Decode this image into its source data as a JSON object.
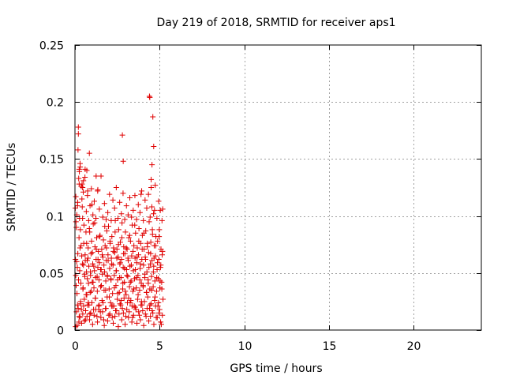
{
  "chart_data": {
    "type": "scatter",
    "title": "Day 219 of 2018, SRMTID for receiver aps1",
    "xlabel": "GPS time / hours",
    "ylabel": "SRMTID / TECUs",
    "xlim": [
      0,
      24
    ],
    "ylim": [
      0,
      0.25
    ],
    "xticks": [
      0,
      5,
      10,
      15,
      20
    ],
    "xtick_labels": [
      "0",
      "5",
      "10",
      "15",
      "20"
    ],
    "yticks": [
      0,
      0.05,
      0.1,
      0.15,
      0.2,
      0.25
    ],
    "ytick_labels": [
      "0",
      "0.05",
      "0.1",
      "0.15",
      "0.2",
      "0.25"
    ],
    "grid": true,
    "marker": "+",
    "series": [
      {
        "name": "SRMTID",
        "color": "#e00000",
        "x": [
          0.02,
          0.05,
          0.08,
          0.1,
          0.12,
          0.15,
          0.18,
          0.2,
          0.22,
          0.25,
          0.28,
          0.3,
          0.32,
          0.35,
          0.38,
          0.4,
          0.42,
          0.45,
          0.48,
          0.5,
          0.52,
          0.55,
          0.58,
          0.6,
          0.62,
          0.65,
          0.68,
          0.7,
          0.72,
          0.75,
          0.78,
          0.8,
          0.82,
          0.85,
          0.88,
          0.9,
          0.92,
          0.95,
          0.98,
          1.0,
          1.02,
          1.05,
          1.08,
          1.1,
          1.12,
          1.15,
          1.18,
          1.2,
          1.22,
          1.25,
          1.28,
          1.3,
          1.32,
          1.35,
          1.38,
          1.4,
          1.42,
          1.45,
          1.48,
          1.5,
          1.52,
          1.55,
          1.58,
          1.6,
          1.62,
          1.65,
          1.68,
          1.7,
          1.72,
          1.75,
          1.78,
          1.8,
          1.82,
          1.85,
          1.88,
          1.9,
          1.92,
          1.95,
          1.98,
          2.0,
          2.02,
          2.05,
          2.08,
          2.1,
          2.12,
          2.15,
          2.18,
          2.2,
          2.22,
          2.25,
          2.28,
          2.3,
          2.32,
          2.35,
          2.38,
          2.4,
          2.42,
          2.45,
          2.48,
          2.5,
          2.52,
          2.55,
          2.58,
          2.6,
          2.62,
          2.65,
          2.68,
          2.7,
          2.72,
          2.75,
          2.78,
          2.8,
          2.82,
          2.85,
          2.88,
          2.9,
          2.92,
          2.95,
          2.98,
          3.0,
          3.02,
          3.05,
          3.08,
          3.1,
          3.12,
          3.15,
          3.18,
          3.2,
          3.22,
          3.25,
          3.28,
          3.3,
          3.32,
          3.35,
          3.38,
          3.4,
          3.42,
          3.45,
          3.48,
          3.5,
          3.52,
          3.55,
          3.58,
          3.6,
          3.62,
          3.65,
          3.68,
          3.7,
          3.72,
          3.75,
          3.78,
          3.8,
          3.82,
          3.85,
          3.88,
          3.9,
          3.92,
          3.95,
          3.98,
          4.0,
          4.02,
          4.05,
          4.08,
          4.1,
          4.12,
          4.15,
          4.18,
          4.2,
          4.22,
          4.25,
          4.28,
          4.3,
          4.32,
          4.35,
          4.38,
          4.4,
          4.42,
          4.45,
          4.48,
          4.5,
          4.52,
          4.55,
          4.58,
          4.6,
          4.62,
          4.65,
          4.68,
          4.7,
          4.72,
          4.75,
          4.78,
          4.8,
          4.82,
          4.85,
          4.88,
          4.9,
          4.92,
          4.95,
          4.98,
          5.0,
          5.02,
          5.05,
          5.08,
          5.1,
          5.12,
          5.15,
          5.18,
          5.2,
          0.03,
          0.07,
          0.11,
          0.14,
          0.17,
          0.21,
          0.24,
          0.27,
          0.33,
          0.36,
          0.41,
          0.44,
          0.47,
          0.53,
          0.57,
          0.61,
          0.66,
          0.69,
          0.73,
          0.77,
          0.83,
          0.87,
          0.91,
          0.96,
          1.03,
          1.07,
          1.11,
          1.16,
          1.21,
          1.26,
          1.31,
          1.36,
          1.41,
          1.46,
          1.51,
          1.56,
          1.61,
          1.66,
          1.71,
          1.76,
          1.81,
          1.86,
          1.91,
          1.96,
          2.03,
          2.07,
          2.13,
          2.17,
          2.23,
          2.27,
          2.33,
          2.37,
          2.43,
          2.47,
          2.53,
          2.57,
          2.63,
          2.67,
          2.73,
          2.77,
          2.83,
          2.87,
          2.93,
          2.97,
          3.03,
          3.07,
          3.13,
          3.17,
          3.23,
          3.27,
          3.33,
          3.37,
          3.43,
          3.47,
          3.53,
          3.57,
          3.63,
          3.67,
          3.73,
          3.77,
          3.83,
          3.87,
          3.93,
          3.97,
          4.03,
          4.07,
          4.13,
          4.17,
          4.23,
          4.27,
          4.33,
          4.37,
          4.43,
          4.47,
          4.53,
          4.57,
          4.63,
          4.67,
          4.73,
          4.77,
          4.83,
          4.87,
          4.93,
          4.97,
          5.03,
          5.07,
          5.13,
          5.17,
          0.04,
          0.09,
          0.13,
          0.19,
          0.23,
          0.29,
          0.34,
          0.39,
          0.46,
          0.51,
          0.56,
          0.63,
          0.71,
          0.79,
          0.86,
          0.93,
          1.04,
          1.13,
          1.23,
          1.33,
          1.43,
          1.53,
          1.63,
          1.73,
          1.83,
          1.93,
          2.06,
          2.16,
          2.26,
          2.36,
          2.46,
          2.56,
          2.66,
          2.76,
          2.86,
          2.96,
          3.06,
          3.16,
          3.26,
          3.36,
          3.46,
          3.56,
          3.66,
          3.76,
          3.86,
          3.96,
          4.06,
          4.16,
          4.26,
          4.36,
          4.46,
          4.56,
          4.66,
          4.76,
          4.86,
          4.96,
          5.06,
          5.16,
          0.06,
          0.16,
          0.26,
          0.31,
          0.37,
          0.43,
          0.49,
          0.59,
          0.67,
          0.74,
          0.81,
          0.89,
          0.97,
          1.06,
          1.14,
          1.24,
          1.34,
          1.44,
          1.54,
          1.64,
          1.74,
          1.84,
          1.94,
          2.04,
          2.14,
          2.24,
          2.34,
          2.44,
          2.54,
          2.64,
          2.74,
          2.84,
          2.94,
          3.04,
          3.14,
          3.24,
          3.34,
          3.44,
          3.54,
          3.64,
          3.74,
          3.84,
          3.94,
          4.04,
          4.14,
          4.24,
          4.34,
          4.44,
          4.54,
          4.64,
          4.74,
          4.84,
          4.94,
          5.04,
          5.14,
          0.25,
          0.3,
          0.45,
          0.5,
          0.6,
          0.7,
          0.75,
          0.85,
          1.0,
          1.25,
          1.35,
          2.8,
          2.85,
          3.9,
          4.4,
          4.42,
          4.5,
          4.6,
          4.65,
          4.55,
          4.7,
          4.5,
          0.2,
          0.25,
          0.05,
          0.15
        ],
        "y": [
          0.107,
          0.048,
          0.09,
          0.06,
          0.032,
          0.022,
          0.158,
          0.178,
          0.133,
          0.012,
          0.052,
          0.072,
          0.088,
          0.041,
          0.018,
          0.065,
          0.128,
          0.098,
          0.037,
          0.057,
          0.076,
          0.027,
          0.047,
          0.066,
          0.009,
          0.086,
          0.051,
          0.031,
          0.061,
          0.022,
          0.072,
          0.041,
          0.056,
          0.089,
          0.014,
          0.033,
          0.048,
          0.067,
          0.078,
          0.024,
          0.042,
          0.058,
          0.093,
          0.018,
          0.037,
          0.052,
          0.073,
          0.028,
          0.046,
          0.062,
          0.081,
          0.012,
          0.034,
          0.055,
          0.069,
          0.021,
          0.044,
          0.059,
          0.083,
          0.016,
          0.038,
          0.053,
          0.071,
          0.026,
          0.049,
          0.064,
          0.079,
          0.009,
          0.035,
          0.051,
          0.074,
          0.019,
          0.043,
          0.061,
          0.087,
          0.029,
          0.047,
          0.066,
          0.091,
          0.013,
          0.036,
          0.054,
          0.076,
          0.024,
          0.045,
          0.063,
          0.082,
          0.011,
          0.032,
          0.057,
          0.072,
          0.021,
          0.048,
          0.068,
          0.096,
          0.017,
          0.039,
          0.052,
          0.071,
          0.027,
          0.044,
          0.064,
          0.088,
          0.014,
          0.033,
          0.058,
          0.077,
          0.022,
          0.046,
          0.062,
          0.094,
          0.019,
          0.036,
          0.055,
          0.073,
          0.028,
          0.042,
          0.067,
          0.086,
          0.012,
          0.031,
          0.053,
          0.071,
          0.024,
          0.047,
          0.061,
          0.081,
          0.016,
          0.038,
          0.056,
          0.078,
          0.026,
          0.043,
          0.065,
          0.092,
          0.011,
          0.034,
          0.052,
          0.074,
          0.021,
          0.045,
          0.063,
          0.085,
          0.018,
          0.037,
          0.059,
          0.072,
          0.027,
          0.048,
          0.066,
          0.089,
          0.013,
          0.035,
          0.054,
          0.076,
          0.022,
          0.041,
          0.062,
          0.083,
          0.017,
          0.039,
          0.057,
          0.071,
          0.025,
          0.046,
          0.064,
          0.087,
          0.012,
          0.033,
          0.051,
          0.073,
          0.029,
          0.044,
          0.068,
          0.095,
          0.019,
          0.036,
          0.058,
          0.077,
          0.023,
          0.047,
          0.061,
          0.084,
          0.015,
          0.038,
          0.056,
          0.074,
          0.026,
          0.043,
          0.065,
          0.082,
          0.011,
          0.034,
          0.053,
          0.078,
          0.021,
          0.045,
          0.062,
          0.088,
          0.018,
          0.037,
          0.055,
          0.071,
          0.005,
          0.042,
          0.066,
          0.106,
          0.027,
          0.062,
          0.039,
          0.101,
          0.055,
          0.067,
          0.044,
          0.081,
          0.098,
          0.025,
          0.074,
          0.115,
          0.058,
          0.036,
          0.092,
          0.049,
          0.061,
          0.031,
          0.076,
          0.045,
          0.063,
          0.022,
          0.086,
          0.051,
          0.034,
          0.068,
          0.042,
          0.056,
          0.094,
          0.028,
          0.071,
          0.047,
          0.062,
          0.018,
          0.082,
          0.053,
          0.039,
          0.066,
          0.024,
          0.057,
          0.091,
          0.035,
          0.072,
          0.048,
          0.061,
          0.029,
          0.078,
          0.044,
          0.058,
          0.021,
          0.069,
          0.037,
          0.086,
          0.052,
          0.063,
          0.032,
          0.075,
          0.046,
          0.059,
          0.026,
          0.081,
          0.041,
          0.067,
          0.054,
          0.034,
          0.072,
          0.048,
          0.063,
          0.028,
          0.083,
          0.042,
          0.057,
          0.021,
          0.069,
          0.036,
          0.092,
          0.053,
          0.046,
          0.064,
          0.031,
          0.078,
          0.044,
          0.058,
          0.025,
          0.071,
          0.038,
          0.085,
          0.049,
          0.062,
          0.033,
          0.076,
          0.041,
          0.055,
          0.022,
          0.067,
          0.035,
          0.088,
          0.051,
          0.063,
          0.029,
          0.074,
          0.046,
          0.059,
          0.024,
          0.082,
          0.043,
          0.057,
          0.036,
          0.069,
          0.003,
          0.016,
          0.004,
          0.019,
          0.007,
          0.011,
          0.023,
          0.006,
          0.014,
          0.021,
          0.008,
          0.017,
          0.012,
          0.024,
          0.009,
          0.015,
          0.005,
          0.013,
          0.018,
          0.007,
          0.022,
          0.011,
          0.016,
          0.004,
          0.019,
          0.008,
          0.014,
          0.021,
          0.006,
          0.012,
          0.017,
          0.003,
          0.023,
          0.009,
          0.015,
          0.005,
          0.018,
          0.011,
          0.024,
          0.007,
          0.013,
          0.02,
          0.006,
          0.016,
          0.009,
          0.022,
          0.004,
          0.014,
          0.019,
          0.008,
          0.012,
          0.017,
          0.005,
          0.021,
          0.011,
          0.015,
          0.007,
          0.013,
          0.095,
          0.112,
          0.139,
          0.143,
          0.126,
          0.108,
          0.121,
          0.134,
          0.104,
          0.118,
          0.096,
          0.109,
          0.124,
          0.101,
          0.113,
          0.098,
          0.122,
          0.106,
          0.135,
          0.099,
          0.111,
          0.097,
          0.103,
          0.119,
          0.096,
          0.114,
          0.107,
          0.125,
          0.098,
          0.112,
          0.102,
          0.12,
          0.097,
          0.109,
          0.101,
          0.116,
          0.099,
          0.105,
          0.118,
          0.097,
          0.11,
          0.103,
          0.122,
          0.096,
          0.114,
          0.107,
          0.119,
          0.099,
          0.108,
          0.102,
          0.127,
          0.098,
          0.113,
          0.105,
          0.096,
          0.128,
          0.146,
          0.125,
          0.131,
          0.141,
          0.14,
          0.122,
          0.155,
          0.11,
          0.135,
          0.123,
          0.171,
          0.148,
          0.119,
          0.205,
          0.204,
          0.125,
          0.187,
          0.161,
          0.145,
          0.105,
          0.132,
          0.172,
          0.141,
          0.117,
          0.109
        ]
      }
    ]
  }
}
